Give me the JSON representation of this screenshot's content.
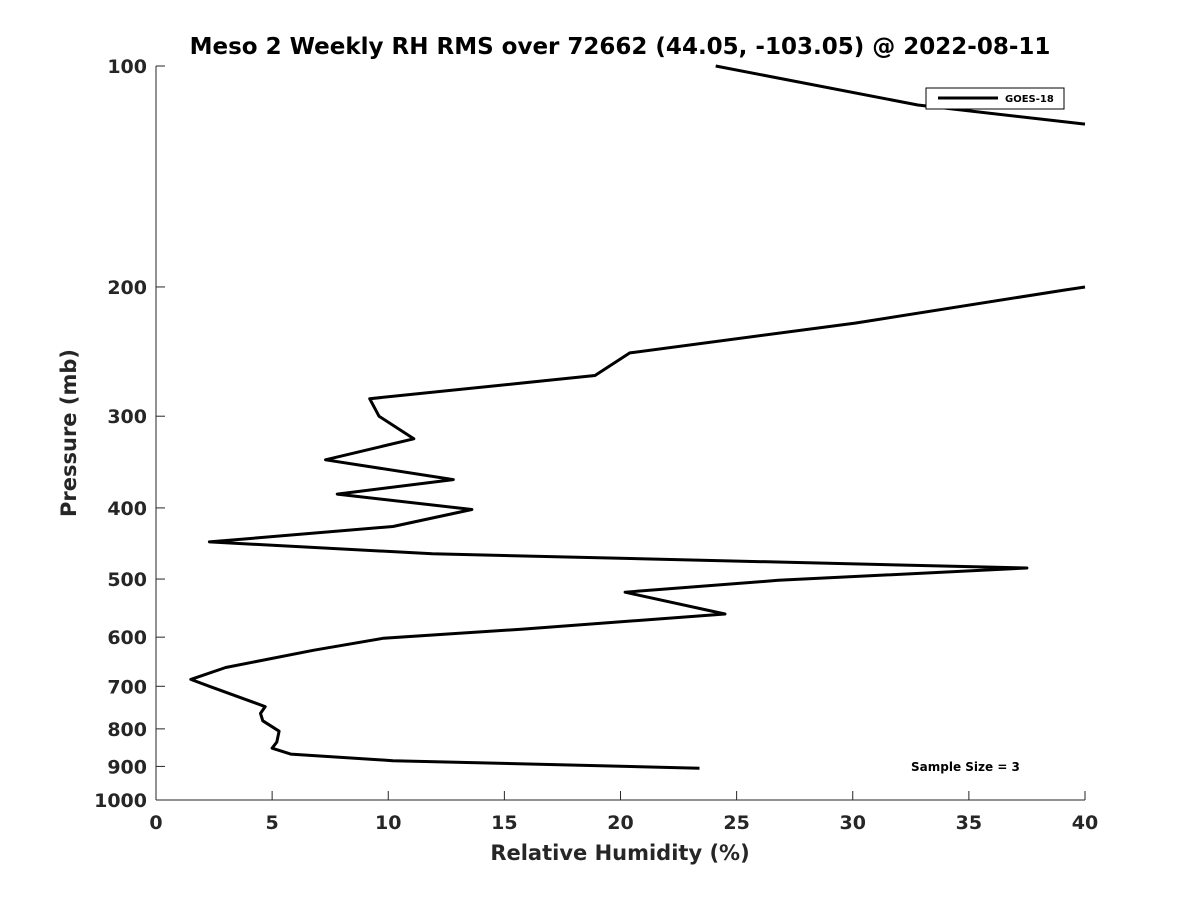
{
  "chart_data": {
    "type": "line",
    "title": "Meso 2 Weekly RH RMS over 72662 (44.05, -103.05) @ 2022-08-11",
    "xlabel": "Relative Humidity (%)",
    "ylabel": "Pressure (mb)",
    "xlim": [
      0,
      40
    ],
    "ylim": [
      100,
      1000
    ],
    "y_scale": "log",
    "y_reversed": true,
    "xticks": [
      "0",
      "5",
      "10",
      "15",
      "20",
      "25",
      "30",
      "35",
      "40"
    ],
    "yticks": [
      "100",
      "200",
      "300",
      "400",
      "500",
      "600",
      "700",
      "800",
      "900",
      "1000"
    ],
    "grid": false,
    "legend_position": "top-right",
    "annotation": "Sample Size = 3",
    "series": [
      {
        "name": "GOES-18",
        "color": "#000000",
        "x": [
          24.1,
          32.8,
          40.0,
          null,
          40.0,
          39.1,
          30.1,
          20.4,
          18.9,
          9.2,
          9.6,
          11.1,
          7.3,
          12.8,
          7.8,
          13.6,
          10.2,
          2.3,
          11.9,
          37.5,
          26.8,
          20.2,
          24.5,
          15.8,
          9.8,
          6.8,
          3.0,
          1.5,
          2.3,
          4.7,
          4.5,
          4.6,
          5.3,
          5.2,
          5.0,
          5.8,
          10.2,
          23.4
        ],
        "y": [
          100,
          113,
          120,
          null,
          200,
          202,
          224,
          246,
          264,
          284,
          300,
          322,
          344,
          366,
          383,
          402,
          424,
          445,
          462,
          483,
          502,
          521,
          558,
          585,
          602,
          625,
          660,
          685,
          700,
          746,
          762,
          780,
          806,
          834,
          850,
          866,
          884,
          905
        ]
      }
    ]
  }
}
